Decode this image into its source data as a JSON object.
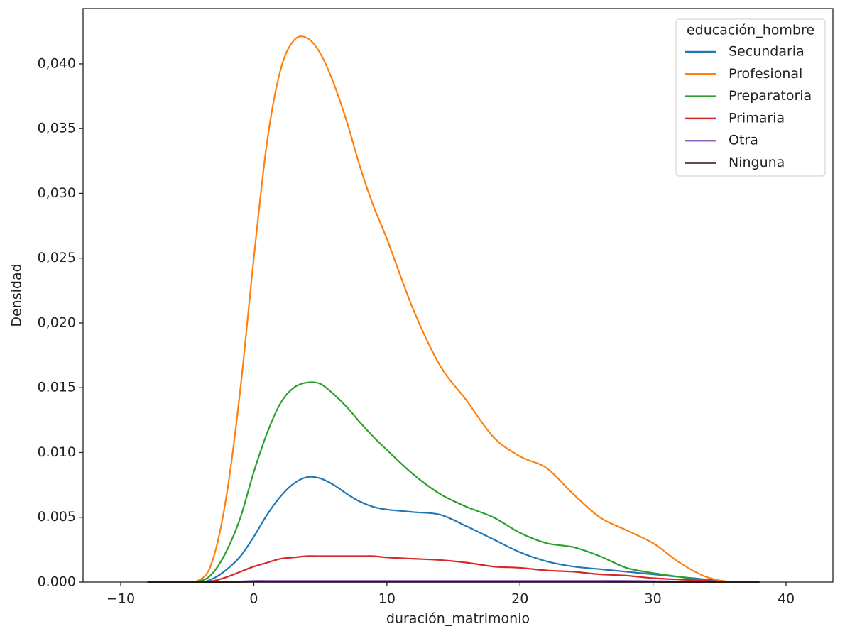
{
  "chart_data": {
    "type": "line",
    "xlabel": "duración_matrimonio",
    "ylabel": "Densidad",
    "legend_title": "educación_hombre",
    "legend": "upper right",
    "x": [
      -8,
      -6,
      -4,
      -3,
      -2,
      -1,
      0,
      1,
      2,
      3,
      4,
      5,
      6,
      7,
      8,
      9,
      10,
      12,
      14,
      16,
      18,
      20,
      22,
      24,
      26,
      28,
      30,
      32,
      34,
      36,
      38
    ],
    "series": [
      {
        "name": "Secundaria",
        "color": "#1f77b4",
        "values": [
          0,
          0,
          0,
          0.0003,
          0.001,
          0.002,
          0.0035,
          0.0052,
          0.0066,
          0.0076,
          0.0081,
          0.008,
          0.0075,
          0.0068,
          0.0062,
          0.0058,
          0.0056,
          0.0054,
          0.0052,
          0.0043,
          0.0033,
          0.0023,
          0.0016,
          0.0012,
          0.001,
          0.0008,
          0.0006,
          0.0004,
          0.0002,
          0,
          0
        ]
      },
      {
        "name": "Profesional",
        "color": "#ff7f0e",
        "values": [
          0,
          0,
          0.0002,
          0.002,
          0.007,
          0.015,
          0.025,
          0.034,
          0.0395,
          0.0418,
          0.042,
          0.0408,
          0.0385,
          0.0355,
          0.032,
          0.029,
          0.0265,
          0.021,
          0.0167,
          0.014,
          0.0112,
          0.0097,
          0.0088,
          0.0068,
          0.005,
          0.004,
          0.003,
          0.0015,
          0.0004,
          0,
          0
        ]
      },
      {
        "name": "Preparatoria",
        "color": "#2ca02c",
        "values": [
          0,
          0,
          0.0001,
          0.0008,
          0.0025,
          0.005,
          0.0085,
          0.0115,
          0.0138,
          0.015,
          0.0154,
          0.0153,
          0.0145,
          0.0135,
          0.0123,
          0.0112,
          0.0102,
          0.0083,
          0.0068,
          0.0058,
          0.005,
          0.0038,
          0.003,
          0.0027,
          0.002,
          0.0011,
          0.0007,
          0.0004,
          0.0001,
          0,
          0
        ]
      },
      {
        "name": "Primaria",
        "color": "#d62728",
        "values": [
          0,
          0,
          0,
          0.0001,
          0.0004,
          0.0008,
          0.0012,
          0.0015,
          0.0018,
          0.0019,
          0.002,
          0.002,
          0.002,
          0.002,
          0.002,
          0.002,
          0.0019,
          0.0018,
          0.0017,
          0.0015,
          0.0012,
          0.0011,
          0.0009,
          0.0008,
          0.0006,
          0.0005,
          0.0003,
          0.0002,
          0.0001,
          0,
          0
        ]
      },
      {
        "name": "Otra",
        "color": "#9467bd",
        "values": [
          0,
          0,
          0,
          0,
          0,
          5e-05,
          0.0001,
          0.0001,
          0.0001,
          0.0001,
          0.0001,
          0.0001,
          0.0001,
          0.0001,
          0.0001,
          0.0001,
          0.0001,
          0.0001,
          0.0001,
          0.0001,
          0.0001,
          0.0001,
          0.0001,
          0.0001,
          0.0001,
          0.0001,
          8e-05,
          5e-05,
          2e-05,
          0,
          0
        ]
      },
      {
        "name": "Ninguna",
        "color": "#3b0a0a",
        "values": [
          0,
          0,
          0,
          0,
          0,
          1e-05,
          2e-05,
          2e-05,
          2e-05,
          2e-05,
          2e-05,
          2e-05,
          2e-05,
          2e-05,
          2e-05,
          2e-05,
          2e-05,
          2e-05,
          2e-05,
          2e-05,
          2e-05,
          2e-05,
          2e-05,
          2e-05,
          2e-05,
          1e-05,
          1e-05,
          0,
          0,
          0,
          0
        ]
      }
    ],
    "xlim": [
      -12.83,
      43.52
    ],
    "xticks": [
      {
        "value": -10,
        "label": "−10"
      },
      0,
      10,
      20,
      30,
      40
    ],
    "ylim": [
      0,
      0.04427
    ],
    "yticks": [
      {
        "value": 0,
        "label": "0.000"
      },
      0.005,
      {
        "value": 0.01,
        "label": "0.010"
      },
      0.015,
      {
        "value": 0.02,
        "label": "0,020"
      },
      {
        "value": 0.025,
        "label": "0,025"
      },
      {
        "value": 0.03,
        "label": "0,030"
      },
      {
        "value": 0.035,
        "label": "0,035"
      },
      {
        "value": 0.04,
        "label": "0,040"
      }
    ]
  }
}
